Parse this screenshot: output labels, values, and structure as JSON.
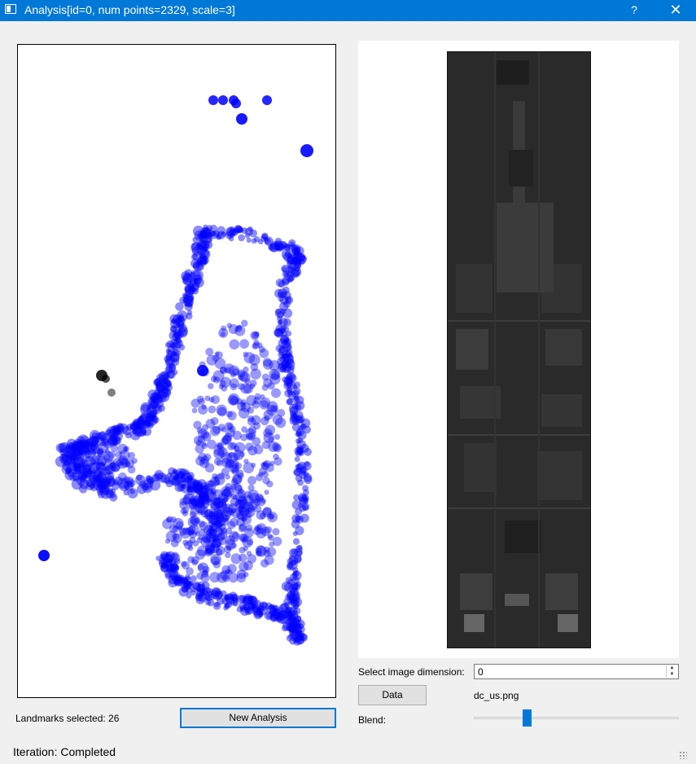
{
  "window": {
    "title": "Analysis[id=0, num points=2329, scale=3]",
    "help_label": "?",
    "close_label": "✕"
  },
  "plot": {
    "point_color": "#0000ff",
    "highlight_color": "#000000"
  },
  "image_panel": {
    "dimension_label": "Select image dimension:",
    "dimension_value": "0",
    "data_button": "Data",
    "filename": "dc_us.png",
    "blend_label": "Blend:",
    "blend_value": 0.25
  },
  "analysis": {
    "landmarks_label": "Landmarks selected: 26",
    "new_analysis_button": "New Analysis"
  },
  "status": {
    "iteration": "Iteration: Completed"
  },
  "colors": {
    "titlebar": "#0078d7",
    "accent": "#0078d7",
    "window_bg": "#f0f0f0"
  }
}
